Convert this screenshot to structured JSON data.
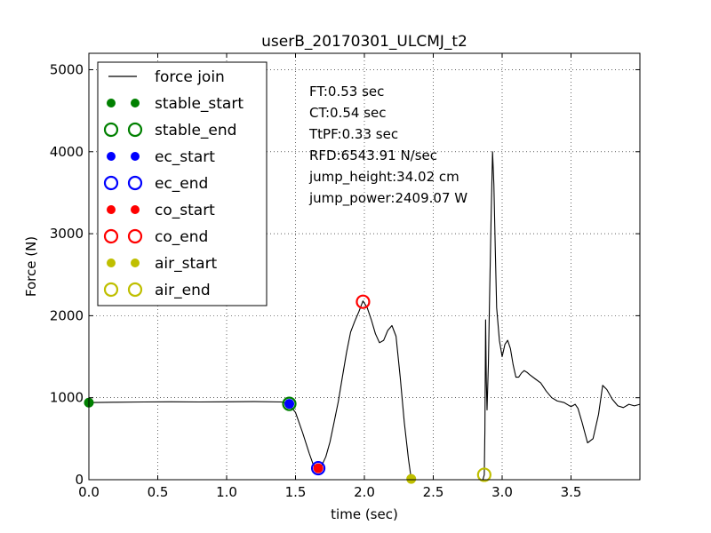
{
  "chart_data": {
    "type": "line",
    "title": "userB_20170301_ULCMJ_t2",
    "xlabel": "time (sec)",
    "ylabel": "Force (N)",
    "xlim": [
      0,
      4.0
    ],
    "ylim": [
      0,
      5200
    ],
    "xticks": [
      0.0,
      0.5,
      1.0,
      1.5,
      2.0,
      2.5,
      3.0,
      3.5
    ],
    "xtick_labels": [
      "0.0",
      "0.5",
      "1.0",
      "1.5",
      "2.0",
      "2.5",
      "3.0",
      "3.5"
    ],
    "yticks": [
      0,
      1000,
      2000,
      3000,
      4000,
      5000
    ],
    "ytick_labels": [
      "0",
      "1000",
      "2000",
      "3000",
      "4000",
      "5000"
    ],
    "grid": true,
    "legend_position": "top-left",
    "series": [
      {
        "name": "force join",
        "color": "#000000",
        "x": [
          0,
          0.2,
          0.4,
          0.6,
          0.8,
          1.0,
          1.2,
          1.4,
          1.45,
          1.5,
          1.55,
          1.6,
          1.63,
          1.66,
          1.69,
          1.72,
          1.75,
          1.78,
          1.81,
          1.84,
          1.87,
          1.9,
          1.93,
          1.96,
          1.99,
          2.02,
          2.05,
          2.08,
          2.11,
          2.14,
          2.17,
          2.2,
          2.23,
          2.26,
          2.29,
          2.32,
          2.34,
          2.36,
          2.4,
          2.5,
          2.6,
          2.7,
          2.8,
          2.86,
          2.87,
          2.875,
          2.88,
          2.885,
          2.89,
          2.9,
          2.91,
          2.92,
          2.93,
          2.94,
          2.95,
          2.96,
          2.98,
          3.0,
          3.02,
          3.04,
          3.06,
          3.08,
          3.1,
          3.12,
          3.14,
          3.16,
          3.18,
          3.2,
          3.24,
          3.28,
          3.32,
          3.36,
          3.4,
          3.45,
          3.5,
          3.53,
          3.55,
          3.58,
          3.62,
          3.66,
          3.7,
          3.73,
          3.76,
          3.8,
          3.84,
          3.88,
          3.92,
          3.96,
          4.0
        ],
        "y": [
          940,
          945,
          948,
          950,
          948,
          950,
          952,
          948,
          925,
          820,
          580,
          320,
          180,
          140,
          170,
          280,
          460,
          700,
          950,
          1250,
          1550,
          1800,
          1930,
          2050,
          2180,
          2100,
          1950,
          1780,
          1670,
          1700,
          1820,
          1880,
          1750,
          1250,
          700,
          250,
          10,
          0,
          0,
          0,
          0,
          0,
          0,
          0,
          60,
          600,
          1950,
          1200,
          850,
          1400,
          2300,
          3200,
          4000,
          3600,
          2800,
          2100,
          1700,
          1500,
          1650,
          1700,
          1600,
          1400,
          1250,
          1250,
          1300,
          1330,
          1310,
          1280,
          1230,
          1180,
          1080,
          1000,
          960,
          940,
          890,
          920,
          870,
          700,
          450,
          500,
          800,
          1150,
          1100,
          980,
          900,
          880,
          920,
          900,
          920
        ]
      }
    ],
    "events": [
      {
        "name": "stable_start",
        "x": 0.0,
        "y": 940,
        "color": "#008000",
        "filled": true
      },
      {
        "name": "stable_end",
        "x": 1.455,
        "y": 925,
        "color": "#008000",
        "filled": false
      },
      {
        "name": "ec_start",
        "x": 1.455,
        "y": 925,
        "color": "#0000ff",
        "filled": true
      },
      {
        "name": "ec_end",
        "x": 1.665,
        "y": 140,
        "color": "#0000ff",
        "filled": false
      },
      {
        "name": "co_start",
        "x": 1.665,
        "y": 140,
        "color": "#ff0000",
        "filled": true
      },
      {
        "name": "co_end",
        "x": 1.99,
        "y": 2170,
        "color": "#ff0000",
        "filled": false
      },
      {
        "name": "air_start",
        "x": 2.34,
        "y": 10,
        "color": "#bfbf00",
        "filled": true
      },
      {
        "name": "air_end",
        "x": 2.87,
        "y": 60,
        "color": "#bfbf00",
        "filled": false
      }
    ],
    "annotations": [
      "FT:0.53 sec",
      "CT:0.54 sec",
      "TtPF:0.33 sec",
      "RFD:6543.91 N/sec",
      "jump_height:34.02 cm",
      "jump_power:2409.07 W"
    ]
  }
}
